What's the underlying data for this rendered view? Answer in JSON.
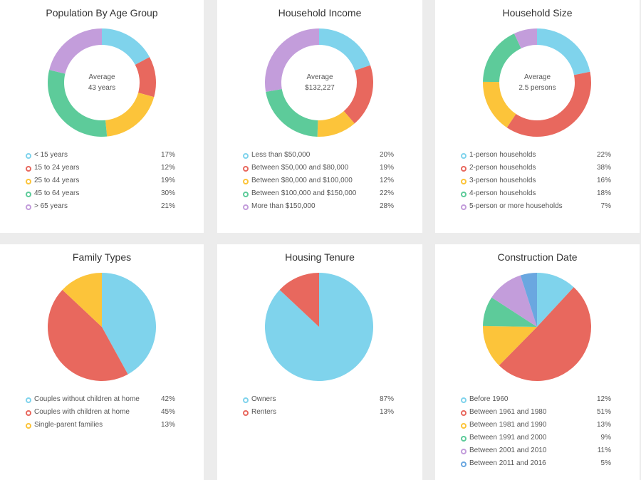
{
  "colors": {
    "blue": "#7fd3ec",
    "red": "#e8685e",
    "yellow": "#fcc43a",
    "green": "#5dcb9a",
    "purple": "#c39ddb",
    "darkblue": "#6aa7e0"
  },
  "cards": [
    {
      "title": "Population By Age Group",
      "center_line1": "Average",
      "center_line2": "43 years"
    },
    {
      "title": "Household Income",
      "center_line1": "Average",
      "center_line2": "$132,227"
    },
    {
      "title": "Household Size",
      "center_line1": "Average",
      "center_line2": "2.5 persons"
    },
    {
      "title": "Family Types"
    },
    {
      "title": "Housing Tenure"
    },
    {
      "title": "Construction Date"
    }
  ],
  "chart_data": [
    {
      "type": "pie",
      "variant": "donut",
      "title": "Population By Age Group",
      "categories": [
        "< 15 years",
        "15 to 24 years",
        "25 to 44 years",
        "45 to 64 years",
        "> 65 years"
      ],
      "values": [
        17,
        12,
        19,
        30,
        21
      ],
      "labels": [
        "17%",
        "12%",
        "19%",
        "30%",
        "21%"
      ],
      "colors": [
        "#7fd3ec",
        "#e8685e",
        "#fcc43a",
        "#5dcb9a",
        "#c39ddb"
      ]
    },
    {
      "type": "pie",
      "variant": "donut",
      "title": "Household Income",
      "categories": [
        "Less than $50,000",
        "Between $50,000 and $80,000",
        "Between $80,000 and $100,000",
        "Between $100,000 and $150,000",
        "More than $150,000"
      ],
      "values": [
        20,
        19,
        12,
        22,
        28
      ],
      "labels": [
        "20%",
        "19%",
        "12%",
        "22%",
        "28%"
      ],
      "colors": [
        "#7fd3ec",
        "#e8685e",
        "#fcc43a",
        "#5dcb9a",
        "#c39ddb"
      ]
    },
    {
      "type": "pie",
      "variant": "donut",
      "title": "Household Size",
      "categories": [
        "1-person households",
        "2-person households",
        "3-person households",
        "4-person households",
        "5-person or more households"
      ],
      "values": [
        22,
        38,
        16,
        18,
        7
      ],
      "labels": [
        "22%",
        "38%",
        "16%",
        "18%",
        "7%"
      ],
      "colors": [
        "#7fd3ec",
        "#e8685e",
        "#fcc43a",
        "#5dcb9a",
        "#c39ddb"
      ]
    },
    {
      "type": "pie",
      "title": "Family Types",
      "categories": [
        "Couples without children at home",
        "Couples with children at home",
        "Single-parent families"
      ],
      "values": [
        42,
        45,
        13
      ],
      "labels": [
        "42%",
        "45%",
        "13%"
      ],
      "colors": [
        "#7fd3ec",
        "#e8685e",
        "#fcc43a"
      ]
    },
    {
      "type": "pie",
      "title": "Housing Tenure",
      "categories": [
        "Owners",
        "Renters"
      ],
      "values": [
        87,
        13
      ],
      "labels": [
        "87%",
        "13%"
      ],
      "colors": [
        "#7fd3ec",
        "#e8685e"
      ]
    },
    {
      "type": "pie",
      "title": "Construction Date",
      "categories": [
        "Before 1960",
        "Between 1961 and 1980",
        "Between 1981 and 1990",
        "Between 1991 and 2000",
        "Between 2001 and 2010",
        "Between 2011 and 2016"
      ],
      "values": [
        12,
        51,
        13,
        9,
        11,
        5
      ],
      "labels": [
        "12%",
        "51%",
        "13%",
        "9%",
        "11%",
        "5%"
      ],
      "colors": [
        "#7fd3ec",
        "#e8685e",
        "#fcc43a",
        "#5dcb9a",
        "#c39ddb",
        "#6aa7e0"
      ]
    }
  ]
}
